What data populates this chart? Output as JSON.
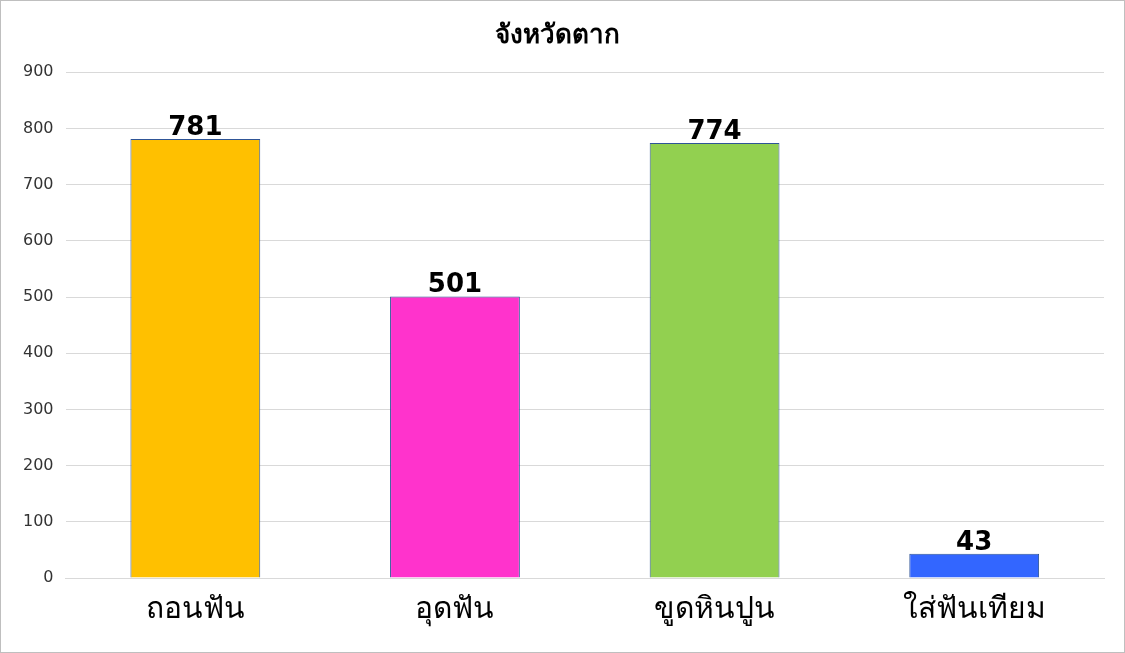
{
  "chart_data": {
    "type": "bar",
    "title": "จังหวัดตาก",
    "categories": [
      "ถอนฟัน",
      "อุดฟัน",
      "ขูดหินปูน",
      "ใส่ฟันเทียม"
    ],
    "values": [
      781,
      501,
      774,
      43
    ],
    "colors": [
      "#ffc000",
      "#ff33cc",
      "#92d050",
      "#3366ff"
    ],
    "ylim": [
      0,
      900
    ],
    "yticks": [
      0,
      100,
      200,
      300,
      400,
      500,
      600,
      700,
      800,
      900
    ],
    "grid": "y",
    "data_labels": true,
    "legend": false
  }
}
